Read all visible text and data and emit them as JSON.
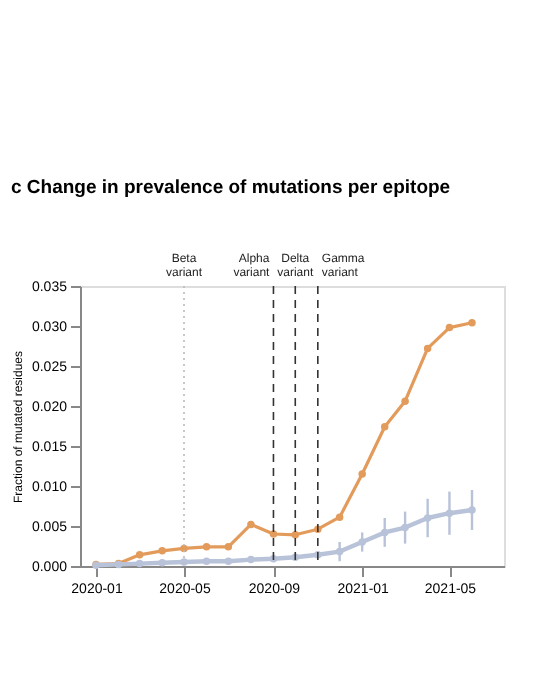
{
  "chart_data": {
    "type": "line",
    "title": "c  Change in prevalence of mutations per epitope",
    "ylabel": "Fraction of mutated residues",
    "x": [
      "2020-01",
      "2020-02",
      "2020-03",
      "2020-04",
      "2020-05",
      "2020-06",
      "2020-07",
      "2020-08",
      "2020-09",
      "2020-10",
      "2020-11",
      "2020-12",
      "2021-01",
      "2021-02",
      "2021-03",
      "2021-04",
      "2021-05",
      "2021-06"
    ],
    "series": [
      {
        "color": "#e39b5b",
        "values": [
          0.0002,
          0.0003,
          0.0014,
          0.0019,
          0.0022,
          0.0024,
          0.0024,
          0.0052,
          0.004,
          0.0039,
          0.0046,
          0.0061,
          0.0115,
          0.0174,
          0.0206,
          0.0272,
          0.0298,
          0.0304
        ]
      },
      {
        "color": "#b8c2d8",
        "values": [
          0.0001,
          0.0002,
          0.0003,
          0.0004,
          0.0005,
          0.0006,
          0.0006,
          0.0008,
          0.0009,
          0.0011,
          0.0014,
          0.0018,
          0.003,
          0.0042,
          0.0048,
          0.006,
          0.0066,
          0.007
        ],
        "errors": [
          null,
          null,
          null,
          null,
          null,
          null,
          null,
          null,
          null,
          null,
          null,
          0.0012,
          0.0012,
          0.0018,
          0.002,
          0.0024,
          0.0027,
          0.0025
        ]
      }
    ],
    "xlim": [
      "2019-12-10",
      "2021-07-15"
    ],
    "xticks": [
      "2020-01",
      "2020-05",
      "2020-09",
      "2021-01",
      "2021-05"
    ],
    "ylim": [
      0,
      0.035
    ],
    "yticks": [
      {
        "value": 0,
        "label": "0.000"
      },
      0.005,
      {
        "value": 0.01,
        "label": "0.010"
      },
      0.015,
      {
        "value": 0.02,
        "label": "0.020"
      },
      0.025,
      {
        "value": 0.03,
        "label": "0.030"
      },
      0.035
    ],
    "ref_lines": [
      {
        "axis": "x",
        "value": "2020-05",
        "label": "Beta\nvariant",
        "color": "#bbbbbb",
        "line_style": "dotted"
      },
      {
        "axis": "x",
        "value": "2020-09",
        "label": "Alpha\nvariant",
        "color": "#333333",
        "line_style": "dashed"
      },
      {
        "axis": "x",
        "value": "2020-10",
        "label": "Delta\nvariant",
        "color": "#333333",
        "line_style": "dashed"
      },
      {
        "axis": "x",
        "value": "2020-11",
        "label": "Gamma\nvariant",
        "color": "#333333",
        "line_style": "dashed"
      }
    ],
    "grid": false,
    "marker": "circle",
    "line_style": "solid"
  }
}
